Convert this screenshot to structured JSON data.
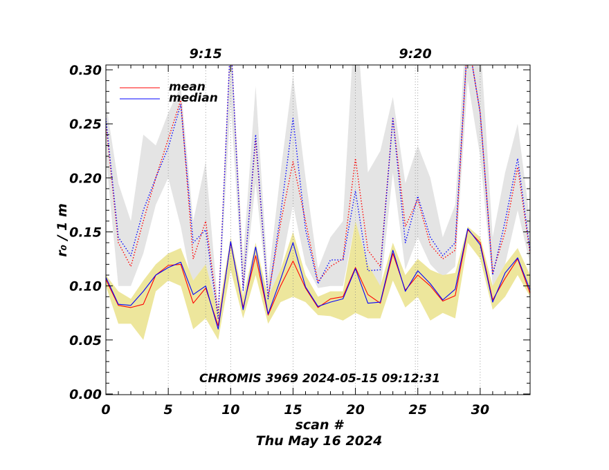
{
  "chart_data": {
    "type": "line",
    "ylabel": "r₀ / 1 m",
    "xlabel": "scan #",
    "date_label": "Thu May 16 2024",
    "annotation": "CHROMIS 3969 2024-05-15 09:12:31",
    "xlim": [
      0,
      34
    ],
    "ylim": [
      0.0,
      0.3
    ],
    "x_ticks": [
      "0",
      "5",
      "10",
      "15",
      "20",
      "25",
      "30"
    ],
    "y_ticks": [
      "0.00",
      "0.05",
      "0.10",
      "0.15",
      "0.20",
      "0.25",
      "0.30"
    ],
    "time_markers": [
      {
        "label": "9:15",
        "scan": 8.0
      },
      {
        "label": "9:20",
        "scan": 24.8
      }
    ],
    "grid_scans": [
      5,
      10,
      15,
      20,
      25,
      30
    ],
    "legend": [
      {
        "name": "mean",
        "color": "#ff0000"
      },
      {
        "name": "median",
        "color": "#0000ff"
      }
    ],
    "x": [
      0,
      1,
      2,
      3,
      4,
      5,
      6,
      7,
      8,
      9,
      10,
      11,
      12,
      13,
      14,
      15,
      16,
      17,
      18,
      19,
      20,
      21,
      22,
      23,
      24,
      25,
      26,
      27,
      28,
      29,
      30,
      31,
      32,
      33,
      34
    ],
    "series": [
      {
        "name": "mean",
        "color": "#ff0000",
        "style": "solid",
        "values": [
          0.106,
          0.082,
          0.08,
          0.083,
          0.11,
          0.119,
          0.12,
          0.084,
          0.098,
          0.063,
          0.14,
          0.08,
          0.128,
          0.073,
          0.1,
          0.123,
          0.098,
          0.08,
          0.088,
          0.09,
          0.117,
          0.092,
          0.084,
          0.13,
          0.096,
          0.11,
          0.1,
          0.086,
          0.091,
          0.152,
          0.14,
          0.087,
          0.107,
          0.125,
          0.093
        ]
      },
      {
        "name": "median",
        "color": "#0000ff",
        "style": "solid",
        "values": [
          0.108,
          0.083,
          0.082,
          0.095,
          0.11,
          0.117,
          0.122,
          0.092,
          0.1,
          0.06,
          0.141,
          0.078,
          0.136,
          0.074,
          0.106,
          0.14,
          0.099,
          0.081,
          0.085,
          0.088,
          0.116,
          0.084,
          0.085,
          0.133,
          0.095,
          0.114,
          0.102,
          0.087,
          0.097,
          0.153,
          0.138,
          0.085,
          0.112,
          0.126,
          0.096
        ]
      },
      {
        "name": "mean (upper)",
        "color": "#ff0000",
        "style": "dotted",
        "values": [
          0.25,
          0.14,
          0.118,
          0.16,
          0.2,
          0.236,
          0.272,
          0.125,
          0.16,
          0.074,
          0.33,
          0.1,
          0.235,
          0.09,
          0.158,
          0.215,
          0.16,
          0.104,
          0.118,
          0.125,
          0.218,
          0.133,
          0.118,
          0.256,
          0.155,
          0.18,
          0.138,
          0.125,
          0.133,
          0.33,
          0.26,
          0.112,
          0.15,
          0.21,
          0.13
        ]
      },
      {
        "name": "median (upper)",
        "color": "#0000ff",
        "style": "dotted",
        "values": [
          0.255,
          0.145,
          0.128,
          0.17,
          0.2,
          0.228,
          0.268,
          0.14,
          0.152,
          0.07,
          0.33,
          0.096,
          0.24,
          0.088,
          0.166,
          0.255,
          0.152,
          0.102,
          0.124,
          0.124,
          0.188,
          0.114,
          0.115,
          0.255,
          0.14,
          0.183,
          0.145,
          0.128,
          0.14,
          0.33,
          0.26,
          0.11,
          0.16,
          0.218,
          0.132
        ]
      }
    ],
    "bands": [
      {
        "name": "mean spread",
        "color": "#e4e4e4",
        "upper": [
          0.27,
          0.195,
          0.16,
          0.24,
          0.23,
          0.26,
          0.285,
          0.16,
          0.215,
          0.08,
          0.335,
          0.125,
          0.285,
          0.105,
          0.205,
          0.295,
          0.2,
          0.116,
          0.145,
          0.16,
          0.36,
          0.205,
          0.225,
          0.275,
          0.195,
          0.23,
          0.2,
          0.145,
          0.175,
          0.365,
          0.33,
          0.145,
          0.205,
          0.25,
          0.16
        ],
        "lower": [
          0.22,
          0.1,
          0.1,
          0.13,
          0.175,
          0.2,
          0.155,
          0.095,
          0.12,
          0.072,
          0.27,
          0.09,
          0.195,
          0.086,
          0.115,
          0.175,
          0.12,
          0.098,
          0.1,
          0.1,
          0.16,
          0.105,
          0.095,
          0.205,
          0.115,
          0.145,
          0.12,
          0.108,
          0.118,
          0.29,
          0.22,
          0.1,
          0.12,
          0.17,
          0.12
        ]
      },
      {
        "name": "median spread",
        "color": "#ede69c",
        "upper": [
          0.11,
          0.095,
          0.088,
          0.105,
          0.12,
          0.13,
          0.135,
          0.105,
          0.12,
          0.075,
          0.145,
          0.09,
          0.14,
          0.09,
          0.115,
          0.15,
          0.11,
          0.09,
          0.095,
          0.095,
          0.16,
          0.12,
          0.1,
          0.14,
          0.11,
          0.125,
          0.115,
          0.11,
          0.112,
          0.155,
          0.145,
          0.1,
          0.12,
          0.135,
          0.11
        ]
      },
      {
        "name": "lower spread",
        "color": "#ede69c",
        "lower": [
          0.1,
          0.065,
          0.065,
          0.05,
          0.095,
          0.105,
          0.1,
          0.06,
          0.07,
          0.05,
          0.115,
          0.07,
          0.11,
          0.065,
          0.085,
          0.09,
          0.085,
          0.073,
          0.072,
          0.068,
          0.075,
          0.07,
          0.07,
          0.105,
          0.08,
          0.09,
          0.068,
          0.075,
          0.07,
          0.14,
          0.125,
          0.078,
          0.09,
          0.11,
          0.09
        ]
      }
    ]
  }
}
